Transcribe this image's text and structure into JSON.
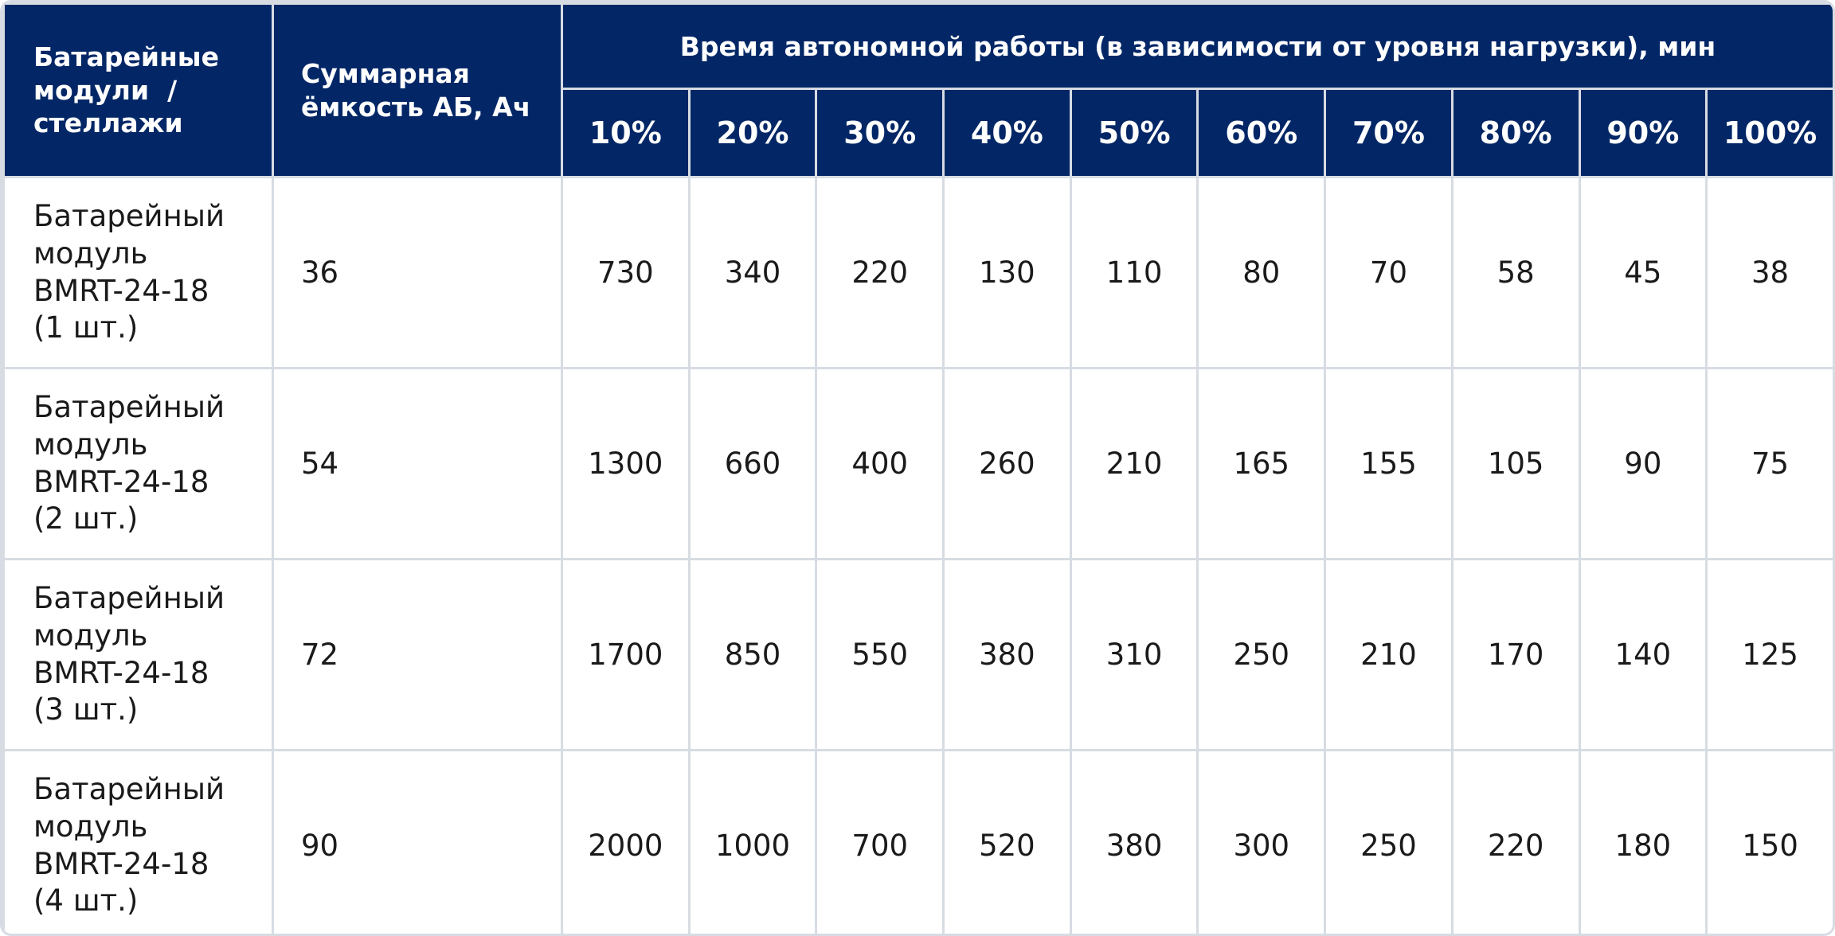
{
  "header": {
    "col_modules": [
      "Батарейные",
      "модули  /",
      "стеллажи"
    ],
    "col_capacity": [
      "Суммарная",
      "ёмкость АБ, Ач"
    ],
    "group_title": "Время автономной работы (в зависимости от уровня нагрузки), мин",
    "load_levels": [
      "10%",
      "20%",
      "30%",
      "40%",
      "50%",
      "60%",
      "70%",
      "80%",
      "90%",
      "100%"
    ]
  },
  "rows": [
    {
      "name": [
        "Батарейный",
        "модуль",
        "BMRT-24-18",
        "(1 шт.)"
      ],
      "capacity": "36",
      "values": [
        "730",
        "340",
        "220",
        "130",
        "110",
        "80",
        "70",
        "58",
        "45",
        "38"
      ]
    },
    {
      "name": [
        "Батарейный",
        "модуль",
        "BMRT-24-18",
        "(2 шт.)"
      ],
      "capacity": "54",
      "values": [
        "1300",
        "660",
        "400",
        "260",
        "210",
        "165",
        "155",
        "105",
        "90",
        "75"
      ]
    },
    {
      "name": [
        "Батарейный",
        "модуль",
        "BMRT-24-18",
        "(3 шт.)"
      ],
      "capacity": "72",
      "values": [
        "1700",
        "850",
        "550",
        "380",
        "310",
        "250",
        "210",
        "170",
        "140",
        "125"
      ]
    },
    {
      "name": [
        "Батарейный",
        "модуль",
        "BMRT-24-18",
        "(4 шт.)"
      ],
      "capacity": "90",
      "values": [
        "2000",
        "1000",
        "700",
        "520",
        "380",
        "300",
        "250",
        "220",
        "180",
        "150"
      ]
    }
  ],
  "colors": {
    "header_bg": "#032766",
    "header_text": "#ffffff",
    "grid_lines": "#d7dce3",
    "body_text": "#1a1a1a"
  }
}
